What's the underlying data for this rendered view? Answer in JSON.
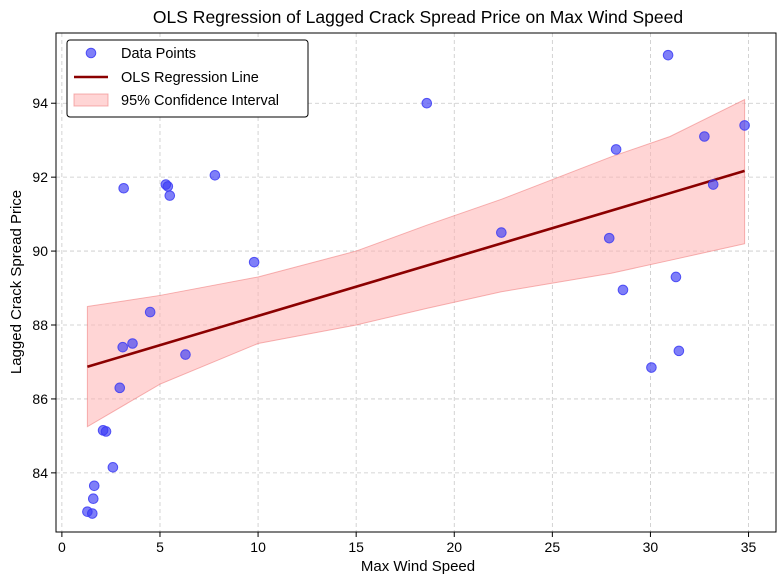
{
  "chart_data": {
    "type": "scatter",
    "title": "OLS Regression of Lagged Crack Spread Price on Max Wind Speed",
    "xlabel": "Max Wind Speed",
    "ylabel": "Lagged Crack Spread Price",
    "xlim": [
      -0.3,
      36.4
    ],
    "ylim": [
      82.4,
      95.9
    ],
    "xticks": [
      0,
      5,
      10,
      15,
      20,
      25,
      30,
      35
    ],
    "yticks": [
      84,
      86,
      88,
      90,
      92,
      94
    ],
    "grid": true,
    "legend_position": "top-left",
    "legend": [
      "Data Points",
      "OLS Regression Line",
      "95% Confidence Interval"
    ],
    "colors": {
      "points": "#3b3bf5",
      "line": "#8b0000",
      "band": "#ffb3b3",
      "band_edge": "#f08080"
    },
    "series": [
      {
        "name": "Data Points",
        "kind": "scatter",
        "points": [
          [
            1.3,
            82.95
          ],
          [
            1.55,
            82.9
          ],
          [
            1.6,
            83.3
          ],
          [
            1.65,
            83.65
          ],
          [
            2.1,
            85.15
          ],
          [
            2.25,
            85.12
          ],
          [
            2.6,
            84.15
          ],
          [
            2.95,
            86.3
          ],
          [
            3.1,
            87.4
          ],
          [
            3.15,
            91.7
          ],
          [
            3.6,
            87.5
          ],
          [
            4.5,
            88.35
          ],
          [
            5.3,
            91.8
          ],
          [
            5.4,
            91.75
          ],
          [
            5.5,
            91.5
          ],
          [
            6.3,
            87.2
          ],
          [
            7.8,
            92.05
          ],
          [
            9.8,
            89.7
          ],
          [
            18.6,
            94.0
          ],
          [
            22.4,
            90.5
          ],
          [
            27.9,
            90.35
          ],
          [
            28.25,
            92.75
          ],
          [
            28.6,
            88.95
          ],
          [
            30.05,
            86.85
          ],
          [
            30.9,
            95.3
          ],
          [
            31.3,
            89.3
          ],
          [
            31.45,
            87.3
          ],
          [
            32.75,
            93.1
          ],
          [
            33.2,
            91.8
          ],
          [
            34.8,
            93.4
          ]
        ]
      },
      {
        "name": "OLS Regression Line",
        "kind": "line",
        "points": [
          [
            1.3,
            86.87
          ],
          [
            34.8,
            92.17
          ]
        ]
      },
      {
        "name": "95% Confidence Interval",
        "kind": "band",
        "x": [
          1.3,
          5,
          10,
          15,
          18.6,
          22.4,
          28,
          31,
          34.8
        ],
        "lower": [
          85.25,
          86.4,
          87.5,
          88.0,
          88.45,
          88.9,
          89.4,
          89.75,
          90.2
        ],
        "upper": [
          88.5,
          88.8,
          89.3,
          90.0,
          90.7,
          91.4,
          92.55,
          93.1,
          94.1
        ]
      }
    ]
  }
}
